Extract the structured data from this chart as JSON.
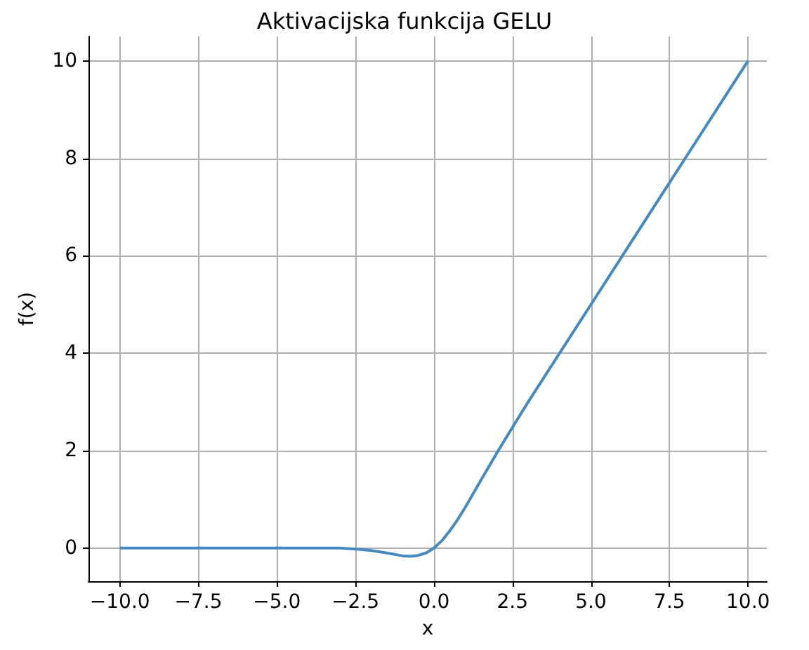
{
  "chart_data": {
    "type": "line",
    "title": "Aktivacijska funkcija GELU",
    "xlabel": "x",
    "ylabel": "f(x)",
    "x": [
      -10,
      -9,
      -8,
      -7,
      -6,
      -5,
      -4,
      -3.5,
      -3,
      -2.5,
      -2,
      -1.5,
      -1,
      -0.75,
      -0.5,
      -0.25,
      0,
      0.25,
      0.5,
      0.75,
      1,
      1.5,
      2,
      2.5,
      3,
      3.5,
      4,
      5,
      6,
      7,
      8,
      9,
      10
    ],
    "series": [
      {
        "color": "#4589c0",
        "values": [
          0,
          0,
          0,
          0,
          0,
          0,
          0,
          0,
          0,
          -0.02,
          -0.05,
          -0.1,
          -0.16,
          -0.17,
          -0.15,
          -0.1,
          0,
          0.15,
          0.35,
          0.58,
          0.84,
          1.4,
          1.95,
          2.48,
          3,
          3.5,
          4,
          5,
          6,
          7,
          8,
          9,
          10
        ]
      }
    ],
    "xlim": [
      -11,
      10.6
    ],
    "ylim": [
      -0.68,
      10.5
    ],
    "xticks": [
      {
        "value": -10,
        "label": "−10.0"
      },
      {
        "value": -7.5,
        "label": "−7.5"
      },
      {
        "value": -5,
        "label": "−5.0"
      },
      {
        "value": -2.5,
        "label": "−2.5"
      },
      {
        "value": 0,
        "label": "0.0"
      },
      {
        "value": 2.5,
        "label": "2.5"
      },
      {
        "value": 5,
        "label": "5.0"
      },
      {
        "value": 7.5,
        "label": "7.5"
      },
      {
        "value": 10,
        "label": "10.0"
      }
    ],
    "yticks": [
      0,
      2,
      4,
      6,
      8,
      10
    ],
    "grid": true
  }
}
